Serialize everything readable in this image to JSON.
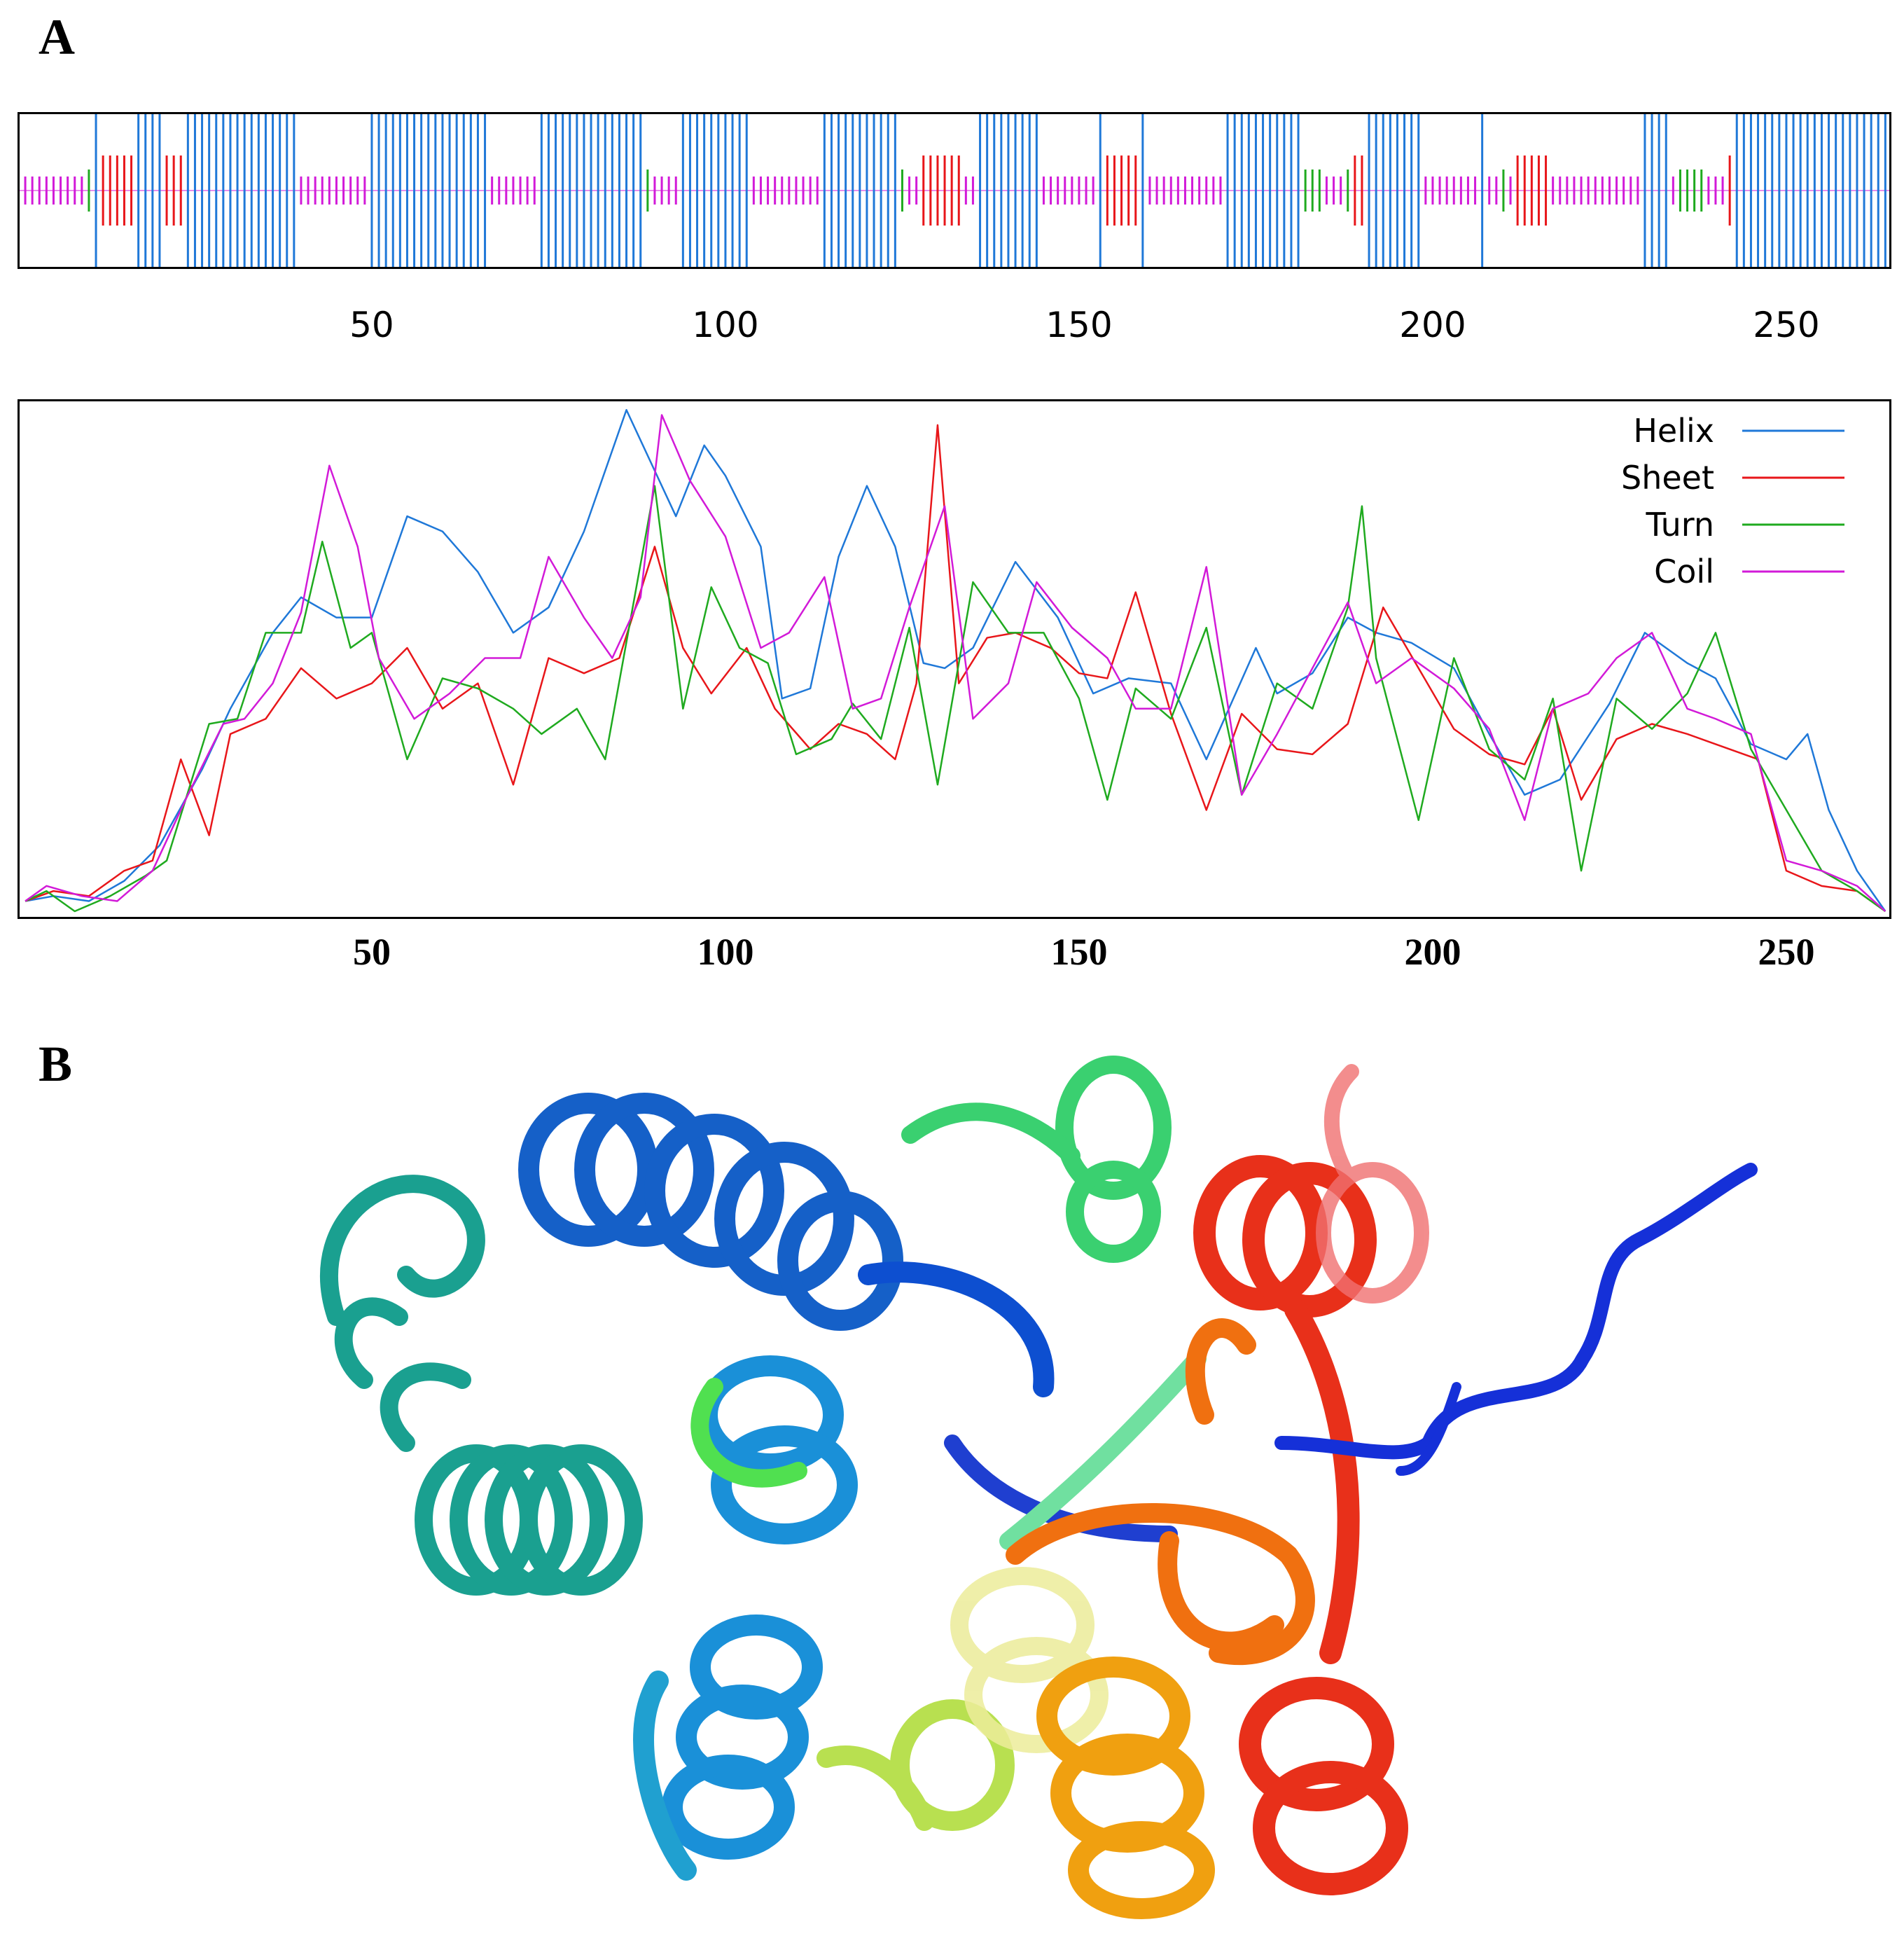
{
  "panels": {
    "a": "A",
    "b": "B"
  },
  "colors": {
    "helix": "#1f78d8",
    "sheet": "#e8161a",
    "turn": "#1faa1f",
    "coil": "#d21ad8"
  },
  "chart_data": [
    {
      "type": "track",
      "x_ticks": [
        "50",
        "100",
        "150",
        "200",
        "250"
      ],
      "xlim": [
        1,
        264
      ],
      "segments": [
        {
          "type": "coil",
          "start": 1,
          "end": 9
        },
        {
          "type": "turn",
          "start": 10,
          "end": 10
        },
        {
          "type": "helix",
          "start": 11,
          "end": 11
        },
        {
          "type": "sheet",
          "start": 12,
          "end": 16
        },
        {
          "type": "helix",
          "start": 17,
          "end": 20
        },
        {
          "type": "sheet",
          "start": 21,
          "end": 23
        },
        {
          "type": "helix",
          "start": 24,
          "end": 39
        },
        {
          "type": "coil",
          "start": 40,
          "end": 49
        },
        {
          "type": "helix",
          "start": 50,
          "end": 66
        },
        {
          "type": "coil",
          "start": 67,
          "end": 73
        },
        {
          "type": "helix",
          "start": 74,
          "end": 88
        },
        {
          "type": "turn",
          "start": 89,
          "end": 89
        },
        {
          "type": "coil",
          "start": 90,
          "end": 93
        },
        {
          "type": "helix",
          "start": 94,
          "end": 103
        },
        {
          "type": "coil",
          "start": 104,
          "end": 113
        },
        {
          "type": "helix",
          "start": 114,
          "end": 124
        },
        {
          "type": "turn",
          "start": 125,
          "end": 125
        },
        {
          "type": "coil",
          "start": 126,
          "end": 127
        },
        {
          "type": "sheet",
          "start": 128,
          "end": 133
        },
        {
          "type": "coil",
          "start": 134,
          "end": 135
        },
        {
          "type": "helix",
          "start": 136,
          "end": 144
        },
        {
          "type": "coil",
          "start": 145,
          "end": 152
        },
        {
          "type": "helix",
          "start": 153,
          "end": 153
        },
        {
          "type": "sheet",
          "start": 154,
          "end": 158
        },
        {
          "type": "helix",
          "start": 159,
          "end": 159
        },
        {
          "type": "coil",
          "start": 160,
          "end": 170
        },
        {
          "type": "helix",
          "start": 171,
          "end": 181
        },
        {
          "type": "turn",
          "start": 182,
          "end": 184
        },
        {
          "type": "coil",
          "start": 185,
          "end": 187
        },
        {
          "type": "turn",
          "start": 188,
          "end": 188
        },
        {
          "type": "sheet",
          "start": 189,
          "end": 190
        },
        {
          "type": "helix",
          "start": 191,
          "end": 198
        },
        {
          "type": "coil",
          "start": 199,
          "end": 206
        },
        {
          "type": "helix",
          "start": 207,
          "end": 207
        },
        {
          "type": "coil",
          "start": 208,
          "end": 209
        },
        {
          "type": "turn",
          "start": 210,
          "end": 210
        },
        {
          "type": "coil",
          "start": 211,
          "end": 211
        },
        {
          "type": "sheet",
          "start": 212,
          "end": 216
        },
        {
          "type": "coil",
          "start": 217,
          "end": 229
        },
        {
          "type": "helix",
          "start": 230,
          "end": 233
        },
        {
          "type": "coil",
          "start": 234,
          "end": 234
        },
        {
          "type": "turn",
          "start": 235,
          "end": 238
        },
        {
          "type": "coil",
          "start": 239,
          "end": 241
        },
        {
          "type": "sheet",
          "start": 242,
          "end": 242
        },
        {
          "type": "helix",
          "start": 243,
          "end": 264
        }
      ]
    },
    {
      "type": "line",
      "x_ticks": [
        "50",
        "100",
        "150",
        "200",
        "250"
      ],
      "xlim": [
        1,
        264
      ],
      "ylim": [
        0,
        1
      ],
      "legend_position": "top-right",
      "series": [
        {
          "name": "Helix",
          "color": "#1f78d8",
          "x": [
            1,
            5,
            10,
            15,
            20,
            26,
            30,
            36,
            40,
            45,
            50,
            55,
            60,
            65,
            70,
            75,
            80,
            86,
            90,
            93,
            97,
            100,
            105,
            108,
            112,
            116,
            120,
            124,
            128,
            131,
            135,
            141,
            147,
            152,
            157,
            163,
            168,
            175,
            178,
            183,
            188,
            192,
            197,
            203,
            208,
            213,
            218,
            225,
            230,
            236,
            240,
            245,
            250,
            253,
            256,
            260,
            264
          ],
          "y": [
            0.02,
            0.03,
            0.02,
            0.06,
            0.13,
            0.28,
            0.4,
            0.55,
            0.62,
            0.58,
            0.58,
            0.78,
            0.75,
            0.67,
            0.55,
            0.6,
            0.75,
            0.99,
            0.87,
            0.78,
            0.92,
            0.86,
            0.72,
            0.42,
            0.44,
            0.7,
            0.84,
            0.72,
            0.49,
            0.48,
            0.52,
            0.69,
            0.58,
            0.43,
            0.46,
            0.45,
            0.3,
            0.52,
            0.43,
            0.47,
            0.58,
            0.55,
            0.53,
            0.48,
            0.35,
            0.23,
            0.26,
            0.41,
            0.55,
            0.49,
            0.46,
            0.33,
            0.3,
            0.35,
            0.2,
            0.08,
            0.0
          ]
        },
        {
          "name": "Sheet",
          "color": "#e8161a",
          "x": [
            1,
            5,
            10,
            15,
            19,
            23,
            27,
            30,
            35,
            40,
            45,
            50,
            55,
            60,
            65,
            70,
            75,
            80,
            85,
            90,
            94,
            98,
            103,
            107,
            112,
            116,
            120,
            124,
            127,
            130,
            133,
            137,
            141,
            146,
            150,
            154,
            158,
            163,
            168,
            173,
            178,
            183,
            188,
            193,
            198,
            203,
            208,
            213,
            217,
            221,
            226,
            231,
            236,
            240,
            246,
            250,
            255,
            260,
            264
          ],
          "y": [
            0.02,
            0.04,
            0.03,
            0.08,
            0.1,
            0.3,
            0.15,
            0.35,
            0.38,
            0.48,
            0.42,
            0.45,
            0.52,
            0.4,
            0.45,
            0.25,
            0.5,
            0.47,
            0.5,
            0.72,
            0.52,
            0.43,
            0.52,
            0.4,
            0.32,
            0.37,
            0.35,
            0.3,
            0.45,
            0.96,
            0.45,
            0.54,
            0.55,
            0.52,
            0.47,
            0.46,
            0.63,
            0.39,
            0.2,
            0.39,
            0.32,
            0.31,
            0.37,
            0.6,
            0.48,
            0.36,
            0.31,
            0.29,
            0.4,
            0.22,
            0.34,
            0.37,
            0.35,
            0.33,
            0.3,
            0.08,
            0.05,
            0.04,
            0.0
          ]
        },
        {
          "name": "Turn",
          "color": "#1faa1f",
          "x": [
            1,
            4,
            8,
            13,
            18,
            21,
            27,
            31,
            35,
            40,
            43,
            47,
            50,
            55,
            60,
            65,
            70,
            74,
            79,
            83,
            90,
            94,
            98,
            102,
            106,
            110,
            115,
            118,
            122,
            126,
            130,
            135,
            140,
            145,
            150,
            154,
            158,
            163,
            168,
            173,
            178,
            183,
            188,
            190,
            192,
            198,
            203,
            208,
            213,
            217,
            221,
            226,
            231,
            236,
            240,
            245,
            250,
            255,
            260,
            264
          ],
          "y": [
            0.02,
            0.04,
            0.0,
            0.03,
            0.07,
            0.1,
            0.37,
            0.38,
            0.55,
            0.55,
            0.73,
            0.52,
            0.55,
            0.3,
            0.46,
            0.44,
            0.4,
            0.35,
            0.4,
            0.3,
            0.84,
            0.4,
            0.64,
            0.52,
            0.49,
            0.31,
            0.34,
            0.41,
            0.34,
            0.56,
            0.25,
            0.65,
            0.55,
            0.55,
            0.42,
            0.22,
            0.44,
            0.38,
            0.56,
            0.23,
            0.45,
            0.4,
            0.6,
            0.8,
            0.5,
            0.18,
            0.5,
            0.32,
            0.26,
            0.42,
            0.08,
            0.42,
            0.36,
            0.43,
            0.55,
            0.32,
            0.2,
            0.08,
            0.04,
            0.0
          ]
        },
        {
          "name": "Coil",
          "color": "#d21ad8",
          "x": [
            1,
            4,
            9,
            14,
            19,
            24,
            29,
            32,
            36,
            40,
            44,
            48,
            51,
            56,
            61,
            66,
            71,
            75,
            80,
            84,
            88,
            91,
            95,
            100,
            105,
            109,
            114,
            118,
            122,
            126,
            131,
            135,
            140,
            144,
            149,
            154,
            158,
            163,
            168,
            173,
            178,
            183,
            188,
            192,
            197,
            203,
            208,
            213,
            217,
            222,
            226,
            231,
            236,
            240,
            245,
            250,
            255,
            260,
            264
          ],
          "y": [
            0.02,
            0.05,
            0.03,
            0.02,
            0.08,
            0.23,
            0.37,
            0.38,
            0.45,
            0.59,
            0.88,
            0.72,
            0.5,
            0.38,
            0.43,
            0.5,
            0.5,
            0.7,
            0.58,
            0.5,
            0.62,
            0.98,
            0.85,
            0.74,
            0.52,
            0.55,
            0.66,
            0.4,
            0.42,
            0.6,
            0.8,
            0.38,
            0.45,
            0.65,
            0.56,
            0.5,
            0.4,
            0.4,
            0.68,
            0.23,
            0.35,
            0.48,
            0.61,
            0.45,
            0.5,
            0.44,
            0.36,
            0.18,
            0.4,
            0.43,
            0.5,
            0.55,
            0.4,
            0.38,
            0.35,
            0.1,
            0.08,
            0.05,
            0.0
          ]
        }
      ]
    }
  ]
}
